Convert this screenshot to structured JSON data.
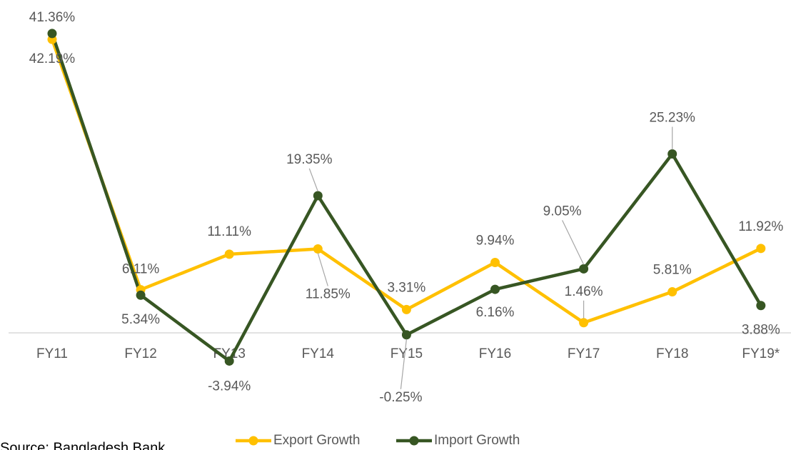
{
  "chart_data": {
    "type": "line",
    "categories": [
      "FY11",
      "FY12",
      "FY13",
      "FY14",
      "FY15",
      "FY16",
      "FY17",
      "FY18",
      "FY19*"
    ],
    "series": [
      {
        "name": "Export Growth",
        "color": "#ffc000",
        "values": [
          41.36,
          6.11,
          11.11,
          11.85,
          3.31,
          9.94,
          1.46,
          5.81,
          11.92
        ],
        "value_labels": [
          "41.36%",
          "6.11%",
          "11.11%",
          "11.85%",
          "3.31%",
          "9.94%",
          "1.46%",
          "5.81%",
          "11.92%"
        ]
      },
      {
        "name": "Import Growth",
        "color": "#375623",
        "values": [
          42.19,
          5.34,
          -3.94,
          19.35,
          -0.25,
          6.16,
          9.05,
          25.23,
          3.88
        ],
        "value_labels": [
          "42.19%",
          "5.34%",
          "-3.94%",
          "19.35%",
          "-0.25%",
          "6.16%",
          "9.05%",
          "25.23%",
          "3.88%"
        ]
      }
    ],
    "ylim": [
      -5,
      45
    ],
    "source": "Source: Bangladesh Bank"
  }
}
